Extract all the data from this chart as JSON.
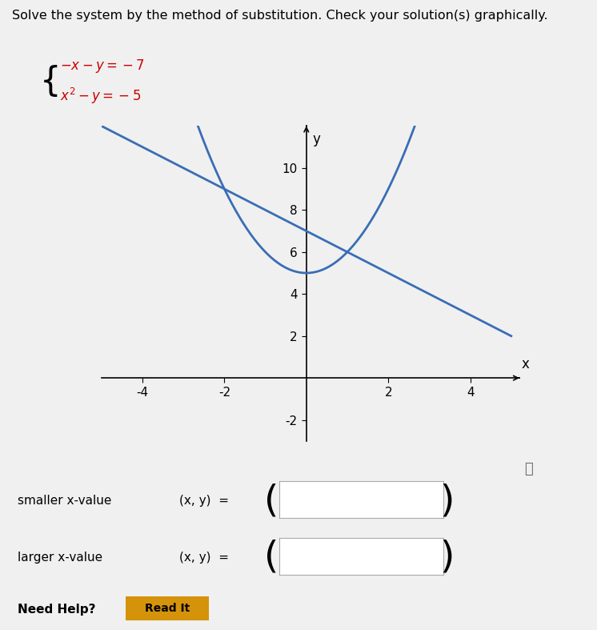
{
  "title": "Solve the system by the method of substitution. Check your solution(s) graphically.",
  "line_color": "#3a6db5",
  "parabola_color": "#3a6db5",
  "background_color": "#f0f0f0",
  "xlim": [
    -5,
    5.2
  ],
  "ylim": [
    -3,
    12
  ],
  "xticks": [
    -4,
    -2,
    2,
    4
  ],
  "yticks": [
    -2,
    2,
    4,
    6,
    8,
    10
  ],
  "xlabel": "x",
  "ylabel": "y",
  "smaller_x_label": "smaller x-value",
  "larger_x_label": "larger x-value",
  "xy_label": "(x, y)  =",
  "need_help_text": "Need Help?",
  "read_it_text": "Read It",
  "eq1": "-x - y = -7",
  "eq2": "x² - y = -5"
}
